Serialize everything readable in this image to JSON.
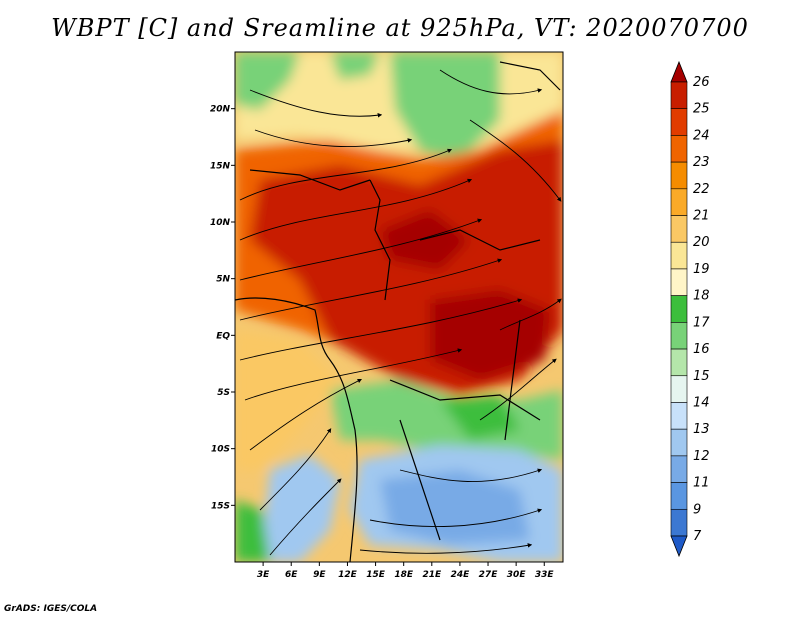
{
  "title": "WBPT [C] and Sreamline at 925hPa, VT: 2020070700",
  "credit": "GrADS: IGES/COLA",
  "map": {
    "lon_range": [
      0,
      35
    ],
    "lat_range": [
      -20,
      25
    ],
    "lon_ticks": [
      "3E",
      "6E",
      "9E",
      "12E",
      "15E",
      "18E",
      "21E",
      "24E",
      "27E",
      "30E",
      "33E"
    ],
    "lat_ticks": [
      "20N",
      "15N",
      "10N",
      "5N",
      "EQ",
      "5S",
      "10S",
      "15S"
    ]
  },
  "colorbar": {
    "labels": [
      "26",
      "25",
      "24",
      "23",
      "22",
      "21",
      "20",
      "19",
      "18",
      "17",
      "16",
      "15",
      "14",
      "13",
      "12",
      "11",
      "9",
      "7"
    ],
    "colors": [
      "#a50000",
      "#c81e00",
      "#e13c00",
      "#f06400",
      "#f58c00",
      "#faaa28",
      "#fac864",
      "#fae696",
      "#fff5c8",
      "#3cbe3c",
      "#78d278",
      "#b4e6aa",
      "#e6f5f0",
      "#c8e1fa",
      "#a0c8f0",
      "#78aae6",
      "#5a96e1",
      "#3c78d2",
      "#1e5ac8"
    ]
  }
}
